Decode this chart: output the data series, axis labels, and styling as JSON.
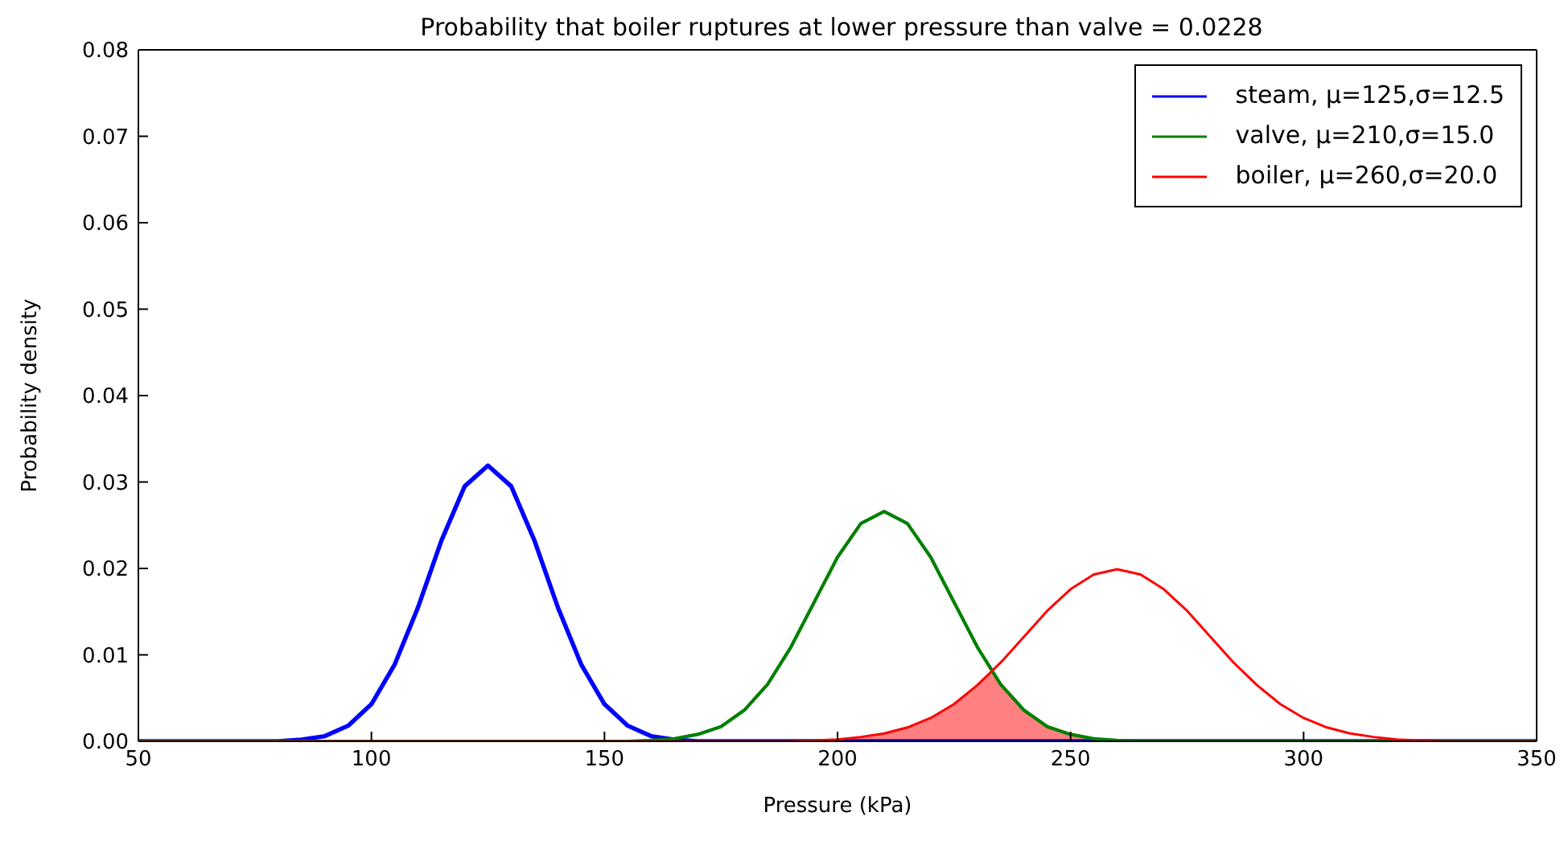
{
  "chart_data": {
    "type": "line",
    "title": "Probability that boiler ruptures at lower pressure than valve = 0.0228",
    "xlabel": "Pressure (kPa)",
    "ylabel": "Probability density",
    "xlim": [
      50,
      350
    ],
    "xticks": [
      50,
      100,
      150,
      200,
      250,
      300,
      350
    ],
    "ylim": [
      0,
      0.08
    ],
    "yticks": [
      {
        "value": 0,
        "label": "0.00"
      },
      {
        "value": 0.01,
        "label": "0.01"
      },
      {
        "value": 0.02,
        "label": "0.02"
      },
      {
        "value": 0.03,
        "label": "0.03"
      },
      {
        "value": 0.04,
        "label": "0.04"
      },
      {
        "value": 0.05,
        "label": "0.05"
      },
      {
        "value": 0.06,
        "label": "0.06"
      },
      {
        "value": 0.07,
        "label": "0.07"
      },
      {
        "value": 0.08,
        "label": "0.08"
      }
    ],
    "grid": false,
    "legend": "top right",
    "marker": "none",
    "line_style": "solid",
    "series": [
      {
        "type": "area",
        "color": "#ff8080",
        "x": [
          190,
          195,
          200,
          205,
          210,
          215,
          220,
          225,
          230,
          233,
          235,
          240,
          245,
          250,
          255,
          260,
          265
        ],
        "values": [
          0,
          0.0001,
          0.0002,
          0.0005,
          0.0009,
          0.0016,
          0.0027,
          0.0043,
          0.0065,
          0.008,
          0.0066,
          0.0036,
          0.0017,
          0.0008,
          0.0003,
          0.0001,
          0
        ]
      },
      {
        "name": "steam, μ=125,σ=12.5",
        "color": "#0000ff",
        "x": [
          50,
          80,
          85,
          90,
          95,
          100,
          105,
          110,
          115,
          120,
          125,
          130,
          135,
          140,
          145,
          150,
          155,
          160,
          165,
          170,
          350
        ],
        "values": [
          0,
          0,
          0.0002,
          0.0006,
          0.0018,
          0.0043,
          0.0089,
          0.0155,
          0.0232,
          0.0295,
          0.0319,
          0.0295,
          0.0232,
          0.0155,
          0.0089,
          0.0043,
          0.0018,
          0.0006,
          0.0002,
          0,
          0
        ]
      },
      {
        "name": "valve, μ=210,σ=15.0",
        "color": "#008000",
        "x": [
          50,
          155,
          160,
          165,
          170,
          175,
          180,
          185,
          190,
          195,
          200,
          205,
          210,
          215,
          220,
          225,
          230,
          235,
          240,
          245,
          250,
          255,
          260,
          265,
          350
        ],
        "values": [
          0,
          0,
          0.0001,
          0.0003,
          0.0008,
          0.0017,
          0.0036,
          0.0066,
          0.0109,
          0.0161,
          0.0213,
          0.0252,
          0.0266,
          0.0252,
          0.0213,
          0.0161,
          0.0109,
          0.0066,
          0.0036,
          0.0017,
          0.0008,
          0.0003,
          0.0001,
          0,
          0
        ]
      },
      {
        "name": "boiler, μ=260,σ=20.0",
        "color": "#ff0000",
        "x": [
          50,
          190,
          195,
          200,
          205,
          210,
          215,
          220,
          225,
          230,
          235,
          240,
          245,
          250,
          255,
          260,
          265,
          270,
          275,
          280,
          285,
          290,
          295,
          300,
          305,
          310,
          315,
          320,
          325,
          330,
          350
        ],
        "values": [
          0,
          0,
          0.0001,
          0.0002,
          0.0005,
          0.0009,
          0.0016,
          0.0027,
          0.0043,
          0.0065,
          0.0091,
          0.0121,
          0.0151,
          0.0176,
          0.0193,
          0.0199,
          0.0193,
          0.0176,
          0.0151,
          0.0121,
          0.0091,
          0.0065,
          0.0043,
          0.0027,
          0.0016,
          0.0009,
          0.0005,
          0.0002,
          0.0001,
          0,
          0
        ]
      }
    ]
  }
}
